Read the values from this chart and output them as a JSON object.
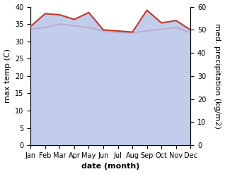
{
  "months": [
    "Jan",
    "Feb",
    "Mar",
    "Apr",
    "May",
    "Jun",
    "Jul",
    "Aug",
    "Sep",
    "Oct",
    "Nov",
    "Dec"
  ],
  "max_temp": [
    33.5,
    34.0,
    35.0,
    34.5,
    34.0,
    33.0,
    32.5,
    32.5,
    33.0,
    33.5,
    34.0,
    32.5
  ],
  "precipitation": [
    51.5,
    57.0,
    56.5,
    54.5,
    57.5,
    50.0,
    49.5,
    49.0,
    58.5,
    53.0,
    54.0,
    50.0
  ],
  "precip_ylim": [
    0,
    60
  ],
  "temp_ylim": [
    0,
    40
  ],
  "temp_color": "#c0392b",
  "precip_fill_color": "#b8c4e8",
  "xlabel": "date (month)",
  "ylabel_left": "max temp (C)",
  "ylabel_right": "med. precipitation (kg/m2)",
  "tick_fontsize": 7,
  "label_fontsize": 8,
  "ylabel_fontsize": 8
}
